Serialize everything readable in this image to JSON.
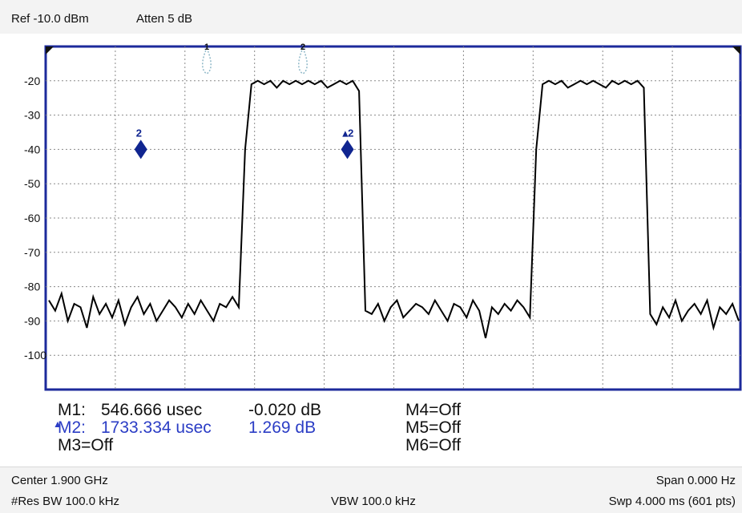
{
  "header": {
    "ref": "Ref -10.0 dBm",
    "atten": "Atten 5 dB"
  },
  "plot": {
    "y_tick_labels": [
      "-20",
      "-30",
      "-40",
      "-50",
      "-60",
      "-70",
      "-80",
      "-90",
      "-100"
    ],
    "colors": {
      "frame": "#1c2a9b",
      "grid": "#8a8a8a",
      "trace": "#000000",
      "marker": "#102590",
      "marker_guide": "#8fb8c8"
    },
    "marker_labels": {
      "m1_top": "1",
      "m2_top": "2",
      "m1_diamond": "2",
      "m2_diamond": "▴2"
    }
  },
  "chart_data": {
    "type": "line",
    "ylim": [
      -110,
      -10
    ],
    "y_ticks": [
      -20,
      -30,
      -40,
      -50,
      -60,
      -70,
      -80,
      -90,
      -100
    ],
    "grid": true,
    "series": [
      {
        "values": [
          -84,
          -87,
          -82,
          -90,
          -85,
          -86,
          -92,
          -83,
          -88,
          -85,
          -89,
          -84,
          -91,
          -86,
          -83,
          -88,
          -85,
          -90,
          -87,
          -84,
          -86,
          -89,
          -85,
          -88,
          -84,
          -87,
          -90,
          -85,
          -86,
          -83,
          -86,
          -40,
          -21,
          -20,
          -21,
          -20,
          -22,
          -20,
          -21,
          -20,
          -21,
          -20,
          -21,
          -20,
          -22,
          -21,
          -20,
          -21,
          -20,
          -23,
          -87,
          -88,
          -85,
          -90,
          -86,
          -84,
          -89,
          -87,
          -85,
          -86,
          -88,
          -84,
          -87,
          -90,
          -85,
          -86,
          -89,
          -84,
          -87,
          -95,
          -86,
          -88,
          -85,
          -87,
          -84,
          -86,
          -89,
          -40,
          -21,
          -20,
          -21,
          -20,
          -22,
          -21,
          -20,
          -21,
          -20,
          -21,
          -22,
          -20,
          -21,
          -20,
          -21,
          -20,
          -22,
          -88,
          -91,
          -86,
          -89,
          -84,
          -90,
          -87,
          -85,
          -88,
          -84,
          -92,
          -86,
          -88,
          -85,
          -90
        ]
      }
    ],
    "markers": [
      {
        "name": "M1",
        "x_usec": 546.666,
        "y_db": -40
      },
      {
        "name": "M2",
        "x_usec": 1733.334,
        "y_db": -40
      }
    ]
  },
  "marker_table": {
    "m1_label": "M1:",
    "m1_time": "546.666 usec",
    "m1_value": "-0.020 dB",
    "m2_label": "M2:",
    "m2_time": "1733.334 usec",
    "m2_value": "1.269 dB",
    "m3": "M3=Off",
    "m4": "M4=Off",
    "m5": "M5=Off",
    "m6": "M6=Off"
  },
  "footer": {
    "center": "Center 1.900 GHz",
    "span": "Span 0.000  Hz",
    "res_bw": "#Res BW 100.0 kHz",
    "vbw": "VBW 100.0 kHz",
    "sweep": "Swp 4.000 ms (601 pts)"
  }
}
